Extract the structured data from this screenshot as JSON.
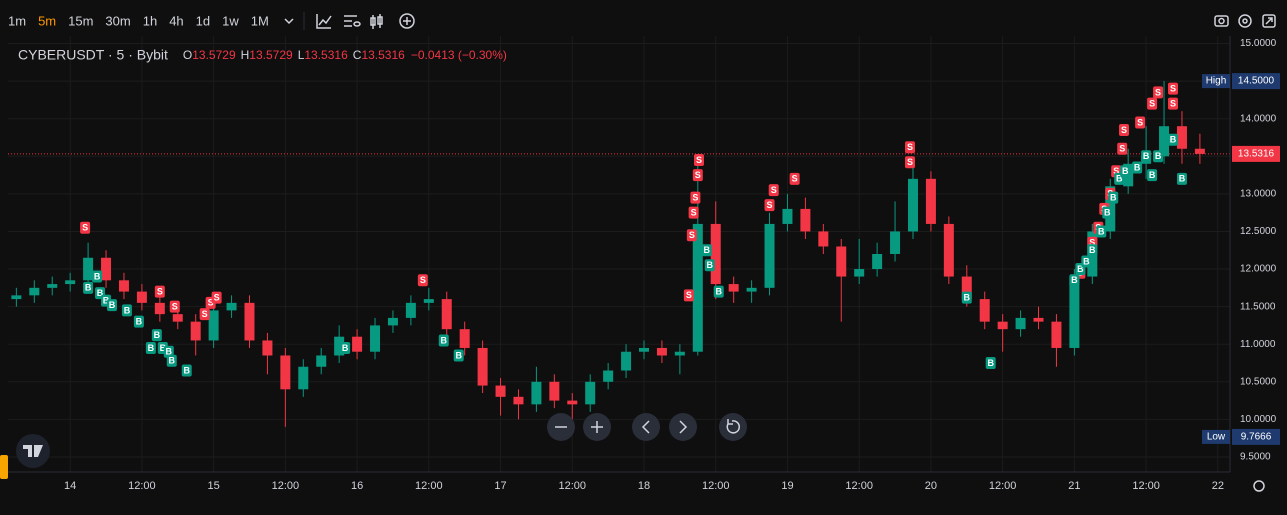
{
  "toolbar": {
    "intervals": [
      "1m",
      "5m",
      "15m",
      "30m",
      "1h",
      "4h",
      "1d",
      "1w",
      "1M"
    ],
    "active": 1
  },
  "legend": {
    "symbol": "CYBERUSDT · 5 · Bybit",
    "fields": [
      {
        "label": "O",
        "value": "13.5729"
      },
      {
        "label": "H",
        "value": "13.5729"
      },
      {
        "label": "L",
        "value": "13.5316"
      },
      {
        "label": "C",
        "value": "13.5316"
      }
    ],
    "change": "−0.0413 (−0.30%)"
  },
  "chart_data": {
    "type": "candlestick",
    "x": [
      -9,
      -6,
      -3,
      0,
      3,
      6,
      9,
      12,
      15,
      18,
      21,
      24,
      27,
      30,
      33,
      36,
      39,
      42,
      45,
      48,
      51,
      54,
      57,
      60,
      63,
      66,
      69,
      72,
      75,
      78,
      81,
      84,
      87,
      90,
      93,
      96,
      99,
      102,
      105,
      108,
      111,
      114,
      117,
      120,
      123,
      126,
      129,
      132,
      135,
      138,
      141,
      144,
      147,
      150,
      153,
      156,
      159,
      162,
      165,
      168,
      171,
      174,
      177,
      180,
      183,
      186,
      189
    ],
    "open": [
      11.6,
      11.65,
      11.75,
      11.8,
      11.85,
      12.15,
      11.85,
      11.7,
      11.55,
      11.4,
      11.3,
      11.05,
      11.45,
      11.55,
      11.05,
      10.85,
      10.4,
      10.7,
      10.85,
      11.1,
      10.9,
      11.25,
      11.35,
      11.55,
      11.6,
      11.2,
      10.95,
      10.45,
      10.3,
      10.2,
      10.5,
      10.25,
      10.2,
      10.5,
      10.65,
      10.9,
      10.95,
      10.85,
      10.9,
      12.6,
      11.8,
      11.7,
      11.75,
      12.6,
      12.8,
      12.5,
      12.3,
      11.9,
      12.0,
      12.2,
      12.5,
      13.2,
      12.6,
      11.9,
      11.6,
      11.3,
      11.2,
      11.35,
      11.3,
      10.95,
      11.9,
      12.5,
      13.1,
      13.4,
      13.5,
      13.9,
      13.6
    ],
    "high": [
      11.75,
      11.85,
      11.9,
      11.95,
      12.35,
      12.25,
      11.95,
      11.8,
      11.65,
      11.5,
      11.4,
      11.55,
      11.65,
      11.65,
      11.15,
      10.95,
      10.8,
      10.95,
      11.25,
      11.2,
      11.35,
      11.45,
      11.65,
      11.75,
      11.7,
      11.3,
      11.05,
      10.55,
      10.4,
      10.7,
      10.6,
      10.35,
      10.6,
      10.75,
      11.0,
      11.05,
      11.05,
      11.0,
      13.5,
      12.9,
      11.9,
      11.85,
      12.75,
      13.0,
      12.95,
      12.6,
      12.4,
      12.4,
      12.35,
      12.9,
      13.35,
      13.3,
      12.7,
      12.05,
      11.7,
      11.4,
      11.45,
      11.5,
      11.4,
      12.0,
      12.6,
      13.2,
      13.6,
      13.9,
      14.5,
      14.1,
      13.8
    ],
    "low": [
      11.5,
      11.55,
      11.65,
      11.7,
      11.75,
      11.75,
      11.6,
      11.45,
      11.3,
      11.2,
      10.85,
      10.95,
      11.35,
      10.95,
      10.6,
      9.9,
      10.3,
      10.6,
      10.75,
      10.8,
      10.8,
      11.15,
      11.25,
      11.45,
      11.1,
      10.85,
      10.35,
      10.05,
      10.0,
      10.1,
      10.15,
      9.95,
      10.1,
      10.4,
      10.55,
      10.8,
      10.75,
      10.6,
      10.85,
      11.6,
      11.55,
      11.55,
      11.65,
      12.5,
      12.4,
      12.2,
      11.3,
      11.8,
      11.9,
      12.1,
      12.4,
      12.5,
      11.8,
      11.5,
      11.2,
      10.9,
      11.1,
      11.2,
      10.7,
      10.85,
      11.8,
      12.4,
      13.0,
      13.2,
      13.4,
      13.4,
      13.4
    ],
    "close": [
      11.65,
      11.75,
      11.8,
      11.85,
      12.15,
      11.85,
      11.7,
      11.55,
      11.4,
      11.3,
      11.05,
      11.45,
      11.55,
      11.05,
      10.85,
      10.4,
      10.7,
      10.85,
      11.1,
      10.9,
      11.25,
      11.35,
      11.55,
      11.6,
      11.2,
      10.95,
      10.45,
      10.3,
      10.2,
      10.5,
      10.25,
      10.2,
      10.5,
      10.65,
      10.9,
      10.95,
      10.85,
      10.9,
      12.6,
      11.8,
      11.7,
      11.75,
      12.6,
      12.8,
      12.5,
      12.3,
      11.9,
      12.0,
      12.2,
      12.5,
      13.2,
      12.6,
      11.9,
      11.6,
      11.3,
      11.2,
      11.35,
      11.3,
      10.95,
      11.9,
      12.5,
      13.1,
      13.4,
      13.5,
      13.9,
      13.6,
      13.5316
    ],
    "up_color": "#089981",
    "down_color": "#f23645",
    "xlim": [
      -10.4,
      193.7
    ],
    "xticks": [
      {
        "value": 0,
        "label": "14"
      },
      {
        "value": 12,
        "label": "12:00"
      },
      {
        "value": 24,
        "label": "15"
      },
      {
        "value": 36,
        "label": "12:00"
      },
      {
        "value": 48,
        "label": "16"
      },
      {
        "value": 60,
        "label": "12:00"
      },
      {
        "value": 72,
        "label": "17"
      },
      {
        "value": 84,
        "label": "12:00"
      },
      {
        "value": 96,
        "label": "18"
      },
      {
        "value": 108,
        "label": "12:00"
      },
      {
        "value": 120,
        "label": "19"
      },
      {
        "value": 132,
        "label": "12:00"
      },
      {
        "value": 144,
        "label": "20"
      },
      {
        "value": 156,
        "label": "12:00"
      },
      {
        "value": 168,
        "label": "21"
      },
      {
        "value": 180,
        "label": "12:00"
      },
      {
        "value": 192,
        "label": "22"
      }
    ],
    "ylim": [
      9.3,
      15.1
    ],
    "yticks": [
      {
        "value": 15,
        "label": "15.0000"
      },
      {
        "value": 14.5,
        "label": "14.5000"
      },
      {
        "value": 14,
        "label": "14.0000"
      },
      {
        "value": 13.5,
        "label": "13.5000"
      },
      {
        "value": 13,
        "label": "13.0000"
      },
      {
        "value": 12.5,
        "label": "12.5000"
      },
      {
        "value": 12,
        "label": "12.0000"
      },
      {
        "value": 11.5,
        "label": "11.5000"
      },
      {
        "value": 11,
        "label": "11.0000"
      },
      {
        "value": 10.5,
        "label": "10.5000"
      },
      {
        "value": 10,
        "label": "10.0000"
      },
      {
        "value": 9.5,
        "label": "9.5000"
      }
    ],
    "grid": true,
    "last_price": 13.5316,
    "high_tag": {
      "name": "High",
      "value": 14.5,
      "label": "14.5000"
    },
    "low_tag": {
      "name": "Low",
      "value": 9.7666
    },
    "signals": [
      {
        "side": "S",
        "x": 2.5,
        "price": 12.55
      },
      {
        "side": "S",
        "x": 15,
        "price": 11.7
      },
      {
        "side": "S",
        "x": 17.5,
        "price": 11.5
      },
      {
        "side": "S",
        "x": 22.5,
        "price": 11.4
      },
      {
        "side": "S",
        "x": 23.5,
        "price": 11.55
      },
      {
        "side": "S",
        "x": 24.5,
        "price": 11.62
      },
      {
        "side": "S",
        "x": 59,
        "price": 11.85
      },
      {
        "side": "S",
        "x": 103.5,
        "price": 11.65
      },
      {
        "side": "S",
        "x": 104,
        "price": 12.45
      },
      {
        "side": "S",
        "x": 104.3,
        "price": 12.75
      },
      {
        "side": "S",
        "x": 104.6,
        "price": 12.95
      },
      {
        "side": "S",
        "x": 105,
        "price": 13.25
      },
      {
        "side": "S",
        "x": 105.2,
        "price": 13.45
      },
      {
        "side": "S",
        "x": 117,
        "price": 12.85
      },
      {
        "side": "S",
        "x": 117.7,
        "price": 13.05
      },
      {
        "side": "S",
        "x": 121.2,
        "price": 13.2
      },
      {
        "side": "S",
        "x": 140.5,
        "price": 13.62
      },
      {
        "side": "S",
        "x": 140.5,
        "price": 13.42
      },
      {
        "side": "S",
        "x": 169,
        "price": 11.95
      },
      {
        "side": "S",
        "x": 171,
        "price": 12.35
      },
      {
        "side": "S",
        "x": 172,
        "price": 12.55
      },
      {
        "side": "S",
        "x": 173,
        "price": 12.8
      },
      {
        "side": "S",
        "x": 174,
        "price": 13.0
      },
      {
        "side": "S",
        "x": 175,
        "price": 13.3
      },
      {
        "side": "S",
        "x": 176,
        "price": 13.6
      },
      {
        "side": "S",
        "x": 176.3,
        "price": 13.85
      },
      {
        "side": "S",
        "x": 179,
        "price": 13.95
      },
      {
        "side": "S",
        "x": 181,
        "price": 14.2
      },
      {
        "side": "S",
        "x": 182,
        "price": 14.35
      },
      {
        "side": "S",
        "x": 184.5,
        "price": 14.4
      },
      {
        "side": "S",
        "x": 184.5,
        "price": 14.2
      },
      {
        "side": "B",
        "x": 3,
        "price": 11.75
      },
      {
        "side": "B",
        "x": 4.5,
        "price": 11.9
      },
      {
        "side": "B",
        "x": 5,
        "price": 11.68
      },
      {
        "side": "B",
        "x": 6,
        "price": 11.58
      },
      {
        "side": "B",
        "x": 7,
        "price": 11.52
      },
      {
        "side": "B",
        "x": 9.5,
        "price": 11.45
      },
      {
        "side": "B",
        "x": 11.5,
        "price": 11.3
      },
      {
        "side": "B",
        "x": 14.5,
        "price": 11.12
      },
      {
        "side": "B",
        "x": 13.5,
        "price": 10.95
      },
      {
        "side": "B",
        "x": 15.5,
        "price": 10.95
      },
      {
        "side": "B",
        "x": 16.5,
        "price": 10.9
      },
      {
        "side": "B",
        "x": 17,
        "price": 10.78
      },
      {
        "side": "B",
        "x": 19.5,
        "price": 10.65
      },
      {
        "side": "B",
        "x": 46,
        "price": 10.95
      },
      {
        "side": "B",
        "x": 62.5,
        "price": 11.05
      },
      {
        "side": "B",
        "x": 65,
        "price": 10.85
      },
      {
        "side": "B",
        "x": 106.5,
        "price": 12.25
      },
      {
        "side": "B",
        "x": 107,
        "price": 12.05
      },
      {
        "side": "B",
        "x": 108.5,
        "price": 11.7
      },
      {
        "side": "B",
        "x": 150,
        "price": 11.62
      },
      {
        "side": "B",
        "x": 154,
        "price": 10.75
      },
      {
        "side": "B",
        "x": 168,
        "price": 11.85
      },
      {
        "side": "B",
        "x": 169,
        "price": 12.0
      },
      {
        "side": "B",
        "x": 170,
        "price": 12.1
      },
      {
        "side": "B",
        "x": 171,
        "price": 12.25
      },
      {
        "side": "B",
        "x": 172.5,
        "price": 12.5
      },
      {
        "side": "B",
        "x": 173.5,
        "price": 12.75
      },
      {
        "side": "B",
        "x": 174.5,
        "price": 12.95
      },
      {
        "side": "B",
        "x": 175.5,
        "price": 13.2
      },
      {
        "side": "B",
        "x": 176.5,
        "price": 13.3
      },
      {
        "side": "B",
        "x": 178.5,
        "price": 13.35
      },
      {
        "side": "B",
        "x": 180,
        "price": 13.5
      },
      {
        "side": "B",
        "x": 181,
        "price": 13.25
      },
      {
        "side": "B",
        "x": 182,
        "price": 13.5
      },
      {
        "side": "B",
        "x": 184.5,
        "price": 13.72
      },
      {
        "side": "B",
        "x": 186,
        "price": 13.2
      }
    ]
  }
}
